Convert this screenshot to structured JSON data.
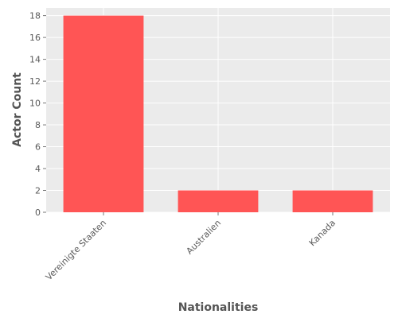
{
  "chart_data": {
    "type": "bar",
    "categories": [
      "Vereinigte Staaten",
      "Australien",
      "Kanada"
    ],
    "values": [
      18,
      2,
      2
    ],
    "title": "",
    "xlabel": "Nationalities",
    "ylabel": "Actor Count",
    "ylim": [
      0,
      18.7
    ],
    "yticks": [
      0,
      2,
      4,
      6,
      8,
      10,
      12,
      14,
      16,
      18
    ],
    "grid": true,
    "legend": "none",
    "colors": {
      "bar": "#ff5555",
      "panel": "#ebebeb",
      "grid": "#ffffff",
      "text": "#5a5a5a"
    }
  }
}
